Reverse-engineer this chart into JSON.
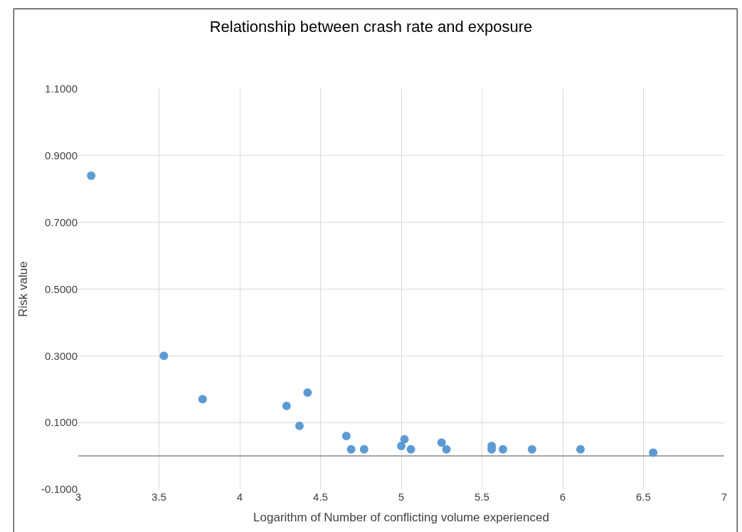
{
  "chart_data": {
    "type": "scatter",
    "title": "Relationship between crash rate and exposure",
    "xlabel": "Logarithm of Number of conflicting volume experienced",
    "ylabel": "Risk value",
    "x": [
      3.08,
      3.53,
      3.77,
      4.29,
      4.42,
      4.37,
      4.66,
      4.69,
      4.77,
      5.0,
      5.02,
      5.06,
      5.25,
      5.28,
      5.56,
      5.56,
      5.63,
      5.81,
      6.11,
      6.56
    ],
    "series": [
      {
        "color": "#5b9bd5",
        "values": [
          0.84,
          0.3,
          0.17,
          0.15,
          0.19,
          0.09,
          0.06,
          0.02,
          0.02,
          0.03,
          0.05,
          0.02,
          0.04,
          0.02,
          0.03,
          0.02,
          0.02,
          0.02,
          0.02,
          0.01
        ]
      }
    ],
    "xlim": [
      3,
      7
    ],
    "xticks": [
      3,
      3.5,
      4,
      4.5,
      5,
      5.5,
      6,
      6.5,
      7
    ],
    "ylim": [
      -0.1,
      1.1
    ],
    "yticks": [
      {
        "value": -0.1,
        "label": "-0.1000"
      },
      {
        "value": 0.1,
        "label": "0.1000"
      },
      {
        "value": 0.3,
        "label": "0.3000"
      },
      {
        "value": 0.5,
        "label": "0.5000"
      },
      {
        "value": 0.7,
        "label": "0.7000"
      },
      {
        "value": 0.9,
        "label": "0.9000"
      },
      {
        "value": 1.1,
        "label": "1.1000"
      }
    ],
    "grid": true,
    "marker": "circle"
  }
}
